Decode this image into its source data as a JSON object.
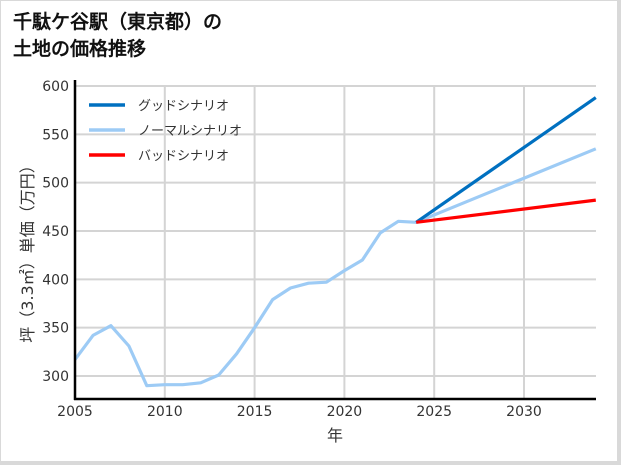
{
  "title_line1": "千駄ケ谷駅（東京都）の",
  "title_line2": "土地の価格推移",
  "chart_data": {
    "type": "line",
    "title": "千駄ケ谷駅（東京都）の土地の価格推移",
    "xlabel": "年",
    "ylabel": "坪（3.3㎡）単価（万円）",
    "xlim": [
      2005,
      2034
    ],
    "ylim": [
      275,
      605
    ],
    "xticks": [
      2005,
      2010,
      2015,
      2020,
      2025,
      2030
    ],
    "yticks": [
      300,
      350,
      400,
      450,
      500,
      550,
      600
    ],
    "grid": true,
    "legend_position": "upper left",
    "series": [
      {
        "name": "グッドシナリオ",
        "color": "#0070c0",
        "x": [
          2024,
          2034
        ],
        "y": [
          459,
          588
        ]
      },
      {
        "name": "ノーマルシナリオ",
        "color": "#9dcbf5",
        "x": [
          2005,
          2006,
          2007,
          2008,
          2009,
          2010,
          2011,
          2012,
          2013,
          2014,
          2015,
          2016,
          2017,
          2018,
          2019,
          2020,
          2021,
          2022,
          2023,
          2024,
          2034
        ],
        "y": [
          317,
          342,
          352,
          331,
          290,
          291,
          291,
          293,
          301,
          323,
          350,
          379,
          391,
          396,
          397,
          409,
          420,
          448,
          460,
          459,
          535
        ]
      },
      {
        "name": "バッドシナリオ",
        "color": "#ff0000",
        "x": [
          2024,
          2034
        ],
        "y": [
          459,
          482
        ]
      }
    ]
  }
}
